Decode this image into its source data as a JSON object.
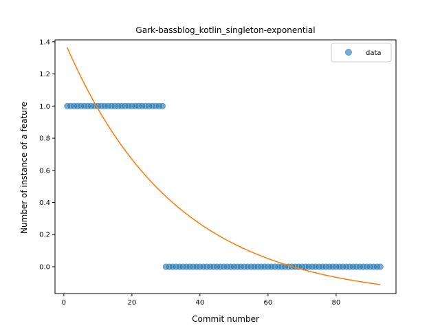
{
  "chart_data": {
    "type": "scatter",
    "title": "Gark-bassblog_kotlin_singleton-exponential",
    "xlabel": "Commit number",
    "ylabel": "Number of instance of a feature",
    "xlim": [
      -2.6,
      97.6
    ],
    "ylim": [
      -0.167,
      1.412
    ],
    "xticks": [
      0,
      20,
      40,
      60,
      80
    ],
    "xtick_labels": [
      "0",
      "20",
      "40",
      "60",
      "80"
    ],
    "yticks": [
      0.0,
      0.2,
      0.4,
      0.6,
      0.8,
      1.0,
      1.2,
      1.4
    ],
    "ytick_labels": [
      "0.0",
      "0.2",
      "0.4",
      "0.6",
      "0.8",
      "1.0",
      "1.2",
      "1.4"
    ],
    "grid": false,
    "legend_position": "top-right",
    "series": [
      {
        "name": "data",
        "kind": "scatter",
        "color": "#1f77b4",
        "segments": [
          {
            "x_start": 1,
            "x_end": 29,
            "y": 1.0
          },
          {
            "x_start": 30,
            "x_end": 93,
            "y": 0.0
          }
        ]
      },
      {
        "kind": "line",
        "color": "#ff7f0e",
        "model": "exponential",
        "x_start": 1,
        "x_end": 93,
        "a": 1.616,
        "b": 0.03088,
        "c": -0.2026
      }
    ]
  }
}
